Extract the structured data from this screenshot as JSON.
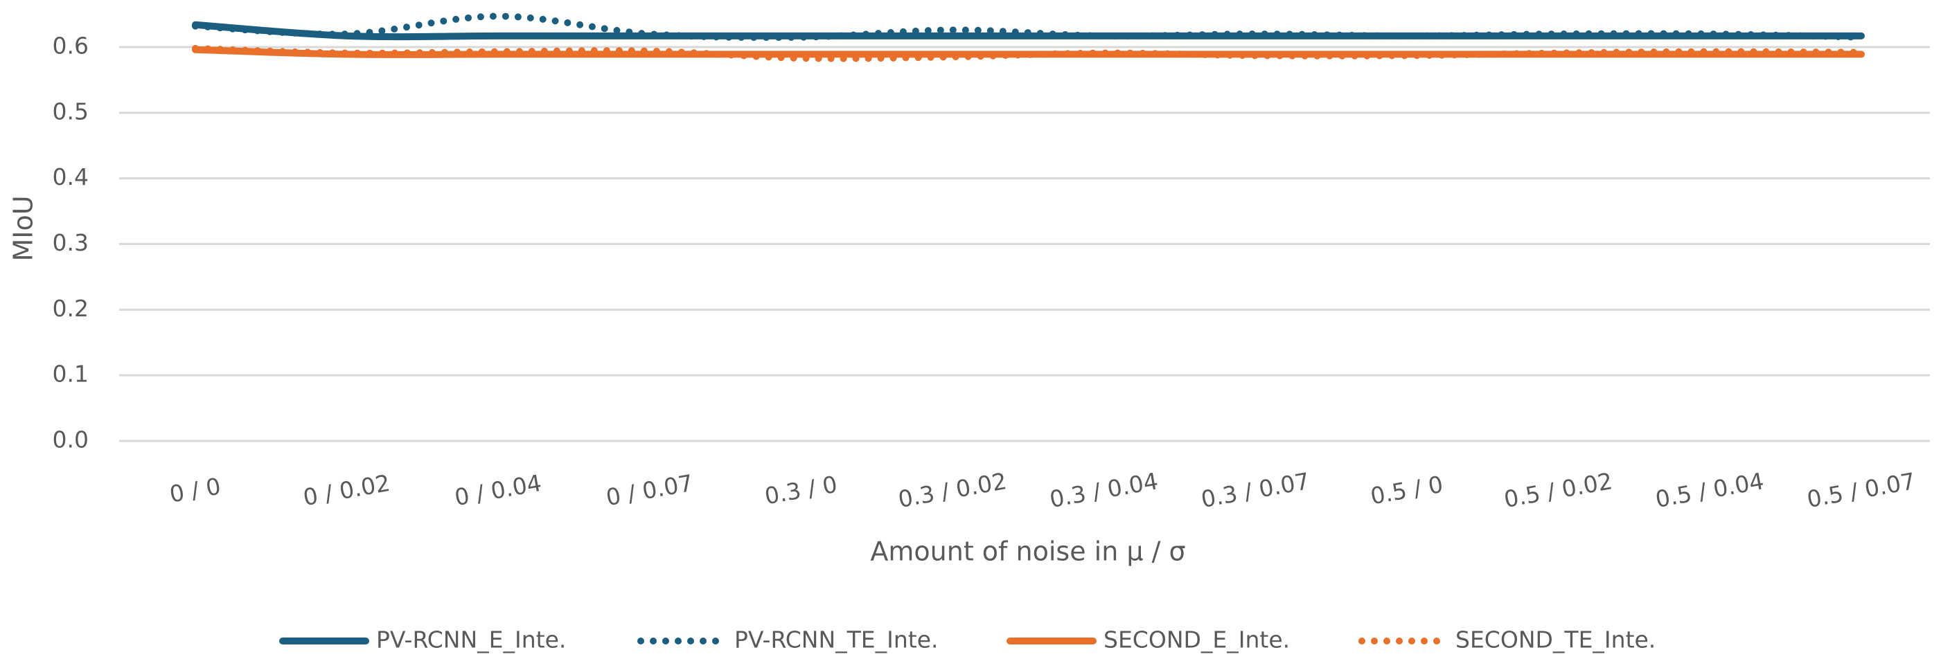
{
  "chart_data": {
    "type": "line",
    "x_label": "Amount of noise in μ / σ",
    "y_label": "MIoU",
    "categories": [
      "0 / 0",
      "0 / 0.02",
      "0 / 0.04",
      "0 / 0.07",
      "0.3 / 0",
      "0.3 / 0.02",
      "0.3 / 0.04",
      "0.3 / 0.07",
      "0.5 / 0",
      "0.5 / 0.02",
      "0.5 / 0.04",
      "0.5 / 0.07"
    ],
    "series": [
      {
        "name": "PV-RCNN_E_Inte.",
        "color": "#1b5e80",
        "style": "solid",
        "values": [
          0.634,
          0.617,
          0.617,
          0.617,
          0.617,
          0.617,
          0.617,
          0.617,
          0.617,
          0.617,
          0.617,
          0.617
        ]
      },
      {
        "name": "PV-RCNN_TE_Inte.",
        "color": "#1b5e80",
        "style": "dotted",
        "values": [
          0.632,
          0.62,
          0.647,
          0.62,
          0.615,
          0.626,
          0.617,
          0.62,
          0.617,
          0.62,
          0.62,
          0.615
        ]
      },
      {
        "name": "SECOND_E_Inte.",
        "color": "#e8702a",
        "style": "solid",
        "values": [
          0.596,
          0.589,
          0.589,
          0.589,
          0.589,
          0.589,
          0.589,
          0.589,
          0.589,
          0.589,
          0.589,
          0.589
        ]
      },
      {
        "name": "SECOND_TE_Inte.",
        "color": "#e8702a",
        "style": "dotted",
        "values": [
          0.598,
          0.591,
          0.593,
          0.594,
          0.583,
          0.585,
          0.591,
          0.587,
          0.587,
          0.591,
          0.593,
          0.592
        ]
      }
    ],
    "ylim": [
      0,
      0.6
    ],
    "yticks": [
      {
        "value": 0,
        "label": "0.0"
      },
      0.1,
      0.2,
      0.3,
      0.4,
      0.5,
      0.6
    ],
    "grid": true,
    "legend": "bottom"
  }
}
